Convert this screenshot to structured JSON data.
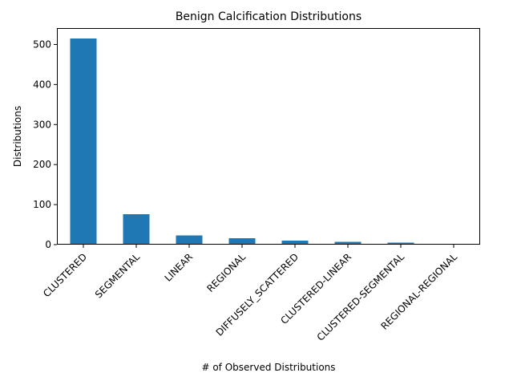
{
  "chart_data": {
    "type": "bar",
    "title": "Benign Calcification Distributions",
    "xlabel": "# of Observed Distributions",
    "ylabel": "Distributions",
    "categories": [
      "CLUSTERED",
      "SEGMENTAL",
      "LINEAR",
      "REGIONAL",
      "DIFFUSELY_SCATTERED",
      "CLUSTERED-LINEAR",
      "CLUSTERED-SEGMENTAL",
      "REGIONAL-REGIONAL"
    ],
    "values": [
      515,
      76,
      23,
      16,
      10,
      7,
      5,
      2
    ],
    "ylim": [
      0,
      541
    ],
    "yticks": [
      0,
      100,
      200,
      300,
      400,
      500
    ],
    "bar_color": "#1f77b4",
    "grid": false,
    "xtick_rotation_deg": 45
  }
}
